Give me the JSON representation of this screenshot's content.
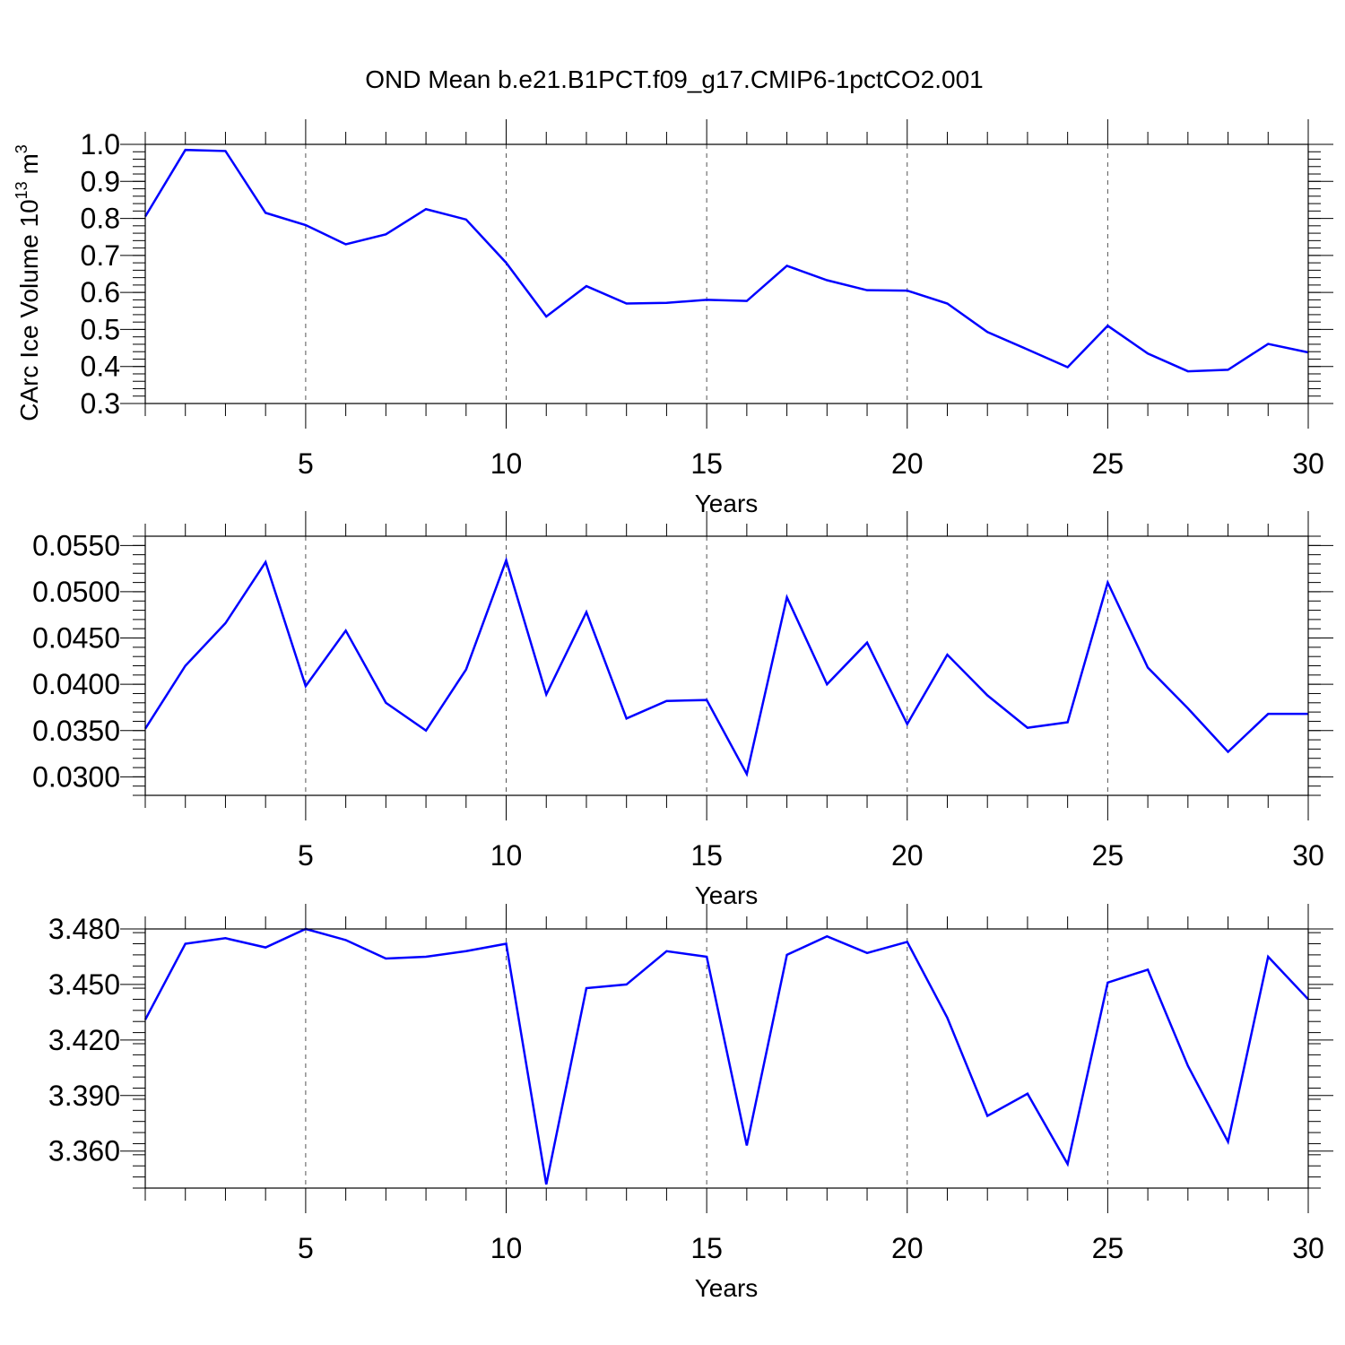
{
  "figure": {
    "title": "OND Mean b.e21.B1PCT.f09_g17.CMIP6-1pctCO2.001"
  },
  "chart_data": [
    {
      "type": "line",
      "title": "OND Mean b.e21.B1PCT.f09_g17.CMIP6-1pctCO2.001",
      "xlabel": "Years",
      "ylabel": "CArc Ice Volume 10",
      "ylabel_exp": "13",
      "ylabel_unit": " m",
      "ylabel_unit_exp": "3",
      "xlim": [
        1,
        30
      ],
      "ylim": [
        0.3,
        1.0
      ],
      "xticks": [
        5,
        10,
        15,
        20,
        25,
        30
      ],
      "xtick_labels": [
        "5",
        "10",
        "15",
        "20",
        "25",
        "30"
      ],
      "yticks": [
        0.3,
        0.4,
        0.5,
        0.6,
        0.7,
        0.8,
        0.9,
        1.0
      ],
      "ytick_labels": [
        "0.3",
        "0.4",
        "0.5",
        "0.6",
        "0.7",
        "0.8",
        "0.9",
        "1.0"
      ],
      "yminor_step": 0.02,
      "grid": "vertical dashed at major x ticks",
      "line_color": "#0000ff",
      "x": [
        1,
        2,
        3,
        4,
        5,
        6,
        7,
        8,
        9,
        10,
        11,
        12,
        13,
        14,
        15,
        16,
        17,
        18,
        19,
        20,
        21,
        22,
        23,
        24,
        25,
        26,
        27,
        28,
        29,
        30
      ],
      "values": [
        0.805,
        0.985,
        0.982,
        0.815,
        0.782,
        0.73,
        0.757,
        0.825,
        0.797,
        0.68,
        0.535,
        0.617,
        0.57,
        0.572,
        0.58,
        0.577,
        0.672,
        0.633,
        0.606,
        0.605,
        0.57,
        0.493,
        0.446,
        0.398,
        0.51,
        0.435,
        0.387,
        0.391,
        0.461,
        0.438
      ]
    },
    {
      "type": "line",
      "xlabel": "Years",
      "xlim": [
        1,
        30
      ],
      "ylim": [
        0.028,
        0.056
      ],
      "xticks": [
        5,
        10,
        15,
        20,
        25,
        30
      ],
      "xtick_labels": [
        "5",
        "10",
        "15",
        "20",
        "25",
        "30"
      ],
      "yticks": [
        0.03,
        0.035,
        0.04,
        0.045,
        0.05,
        0.055
      ],
      "ytick_labels": [
        "0.0300",
        "0.0350",
        "0.0400",
        "0.0450",
        "0.0500",
        "0.0550"
      ],
      "yminor_step": 0.001,
      "grid": "vertical dashed at major x ticks",
      "line_color": "#0000ff",
      "x": [
        1,
        2,
        3,
        4,
        5,
        6,
        7,
        8,
        9,
        10,
        11,
        12,
        13,
        14,
        15,
        16,
        17,
        18,
        19,
        20,
        21,
        22,
        23,
        24,
        25,
        26,
        27,
        28,
        29,
        30
      ],
      "values": [
        0.0352,
        0.042,
        0.0466,
        0.0532,
        0.0398,
        0.0458,
        0.038,
        0.035,
        0.0416,
        0.0534,
        0.0389,
        0.0478,
        0.0363,
        0.0382,
        0.0383,
        0.0303,
        0.0494,
        0.04,
        0.0445,
        0.0357,
        0.0432,
        0.0388,
        0.0353,
        0.0359,
        0.051,
        0.0418,
        0.0374,
        0.0327,
        0.0368,
        0.0368
      ]
    },
    {
      "type": "line",
      "xlabel": "Years",
      "xlim": [
        1,
        30
      ],
      "ylim": [
        3.34,
        3.48
      ],
      "xticks": [
        5,
        10,
        15,
        20,
        25,
        30
      ],
      "xtick_labels": [
        "5",
        "10",
        "15",
        "20",
        "25",
        "30"
      ],
      "yticks": [
        3.36,
        3.39,
        3.42,
        3.45,
        3.48
      ],
      "ytick_labels": [
        "3.360",
        "3.390",
        "3.420",
        "3.450",
        "3.480"
      ],
      "yminor_step": 0.006,
      "grid": "vertical dashed at major x ticks",
      "line_color": "#0000ff",
      "x": [
        1,
        2,
        3,
        4,
        5,
        6,
        7,
        8,
        9,
        10,
        11,
        12,
        13,
        14,
        15,
        16,
        17,
        18,
        19,
        20,
        21,
        22,
        23,
        24,
        25,
        26,
        27,
        28,
        29,
        30
      ],
      "values": [
        3.431,
        3.472,
        3.475,
        3.47,
        3.48,
        3.474,
        3.464,
        3.465,
        3.468,
        3.472,
        3.342,
        3.448,
        3.45,
        3.468,
        3.465,
        3.363,
        3.466,
        3.476,
        3.467,
        3.473,
        3.432,
        3.379,
        3.391,
        3.353,
        3.451,
        3.458,
        3.406,
        3.365,
        3.465,
        3.442
      ]
    }
  ]
}
